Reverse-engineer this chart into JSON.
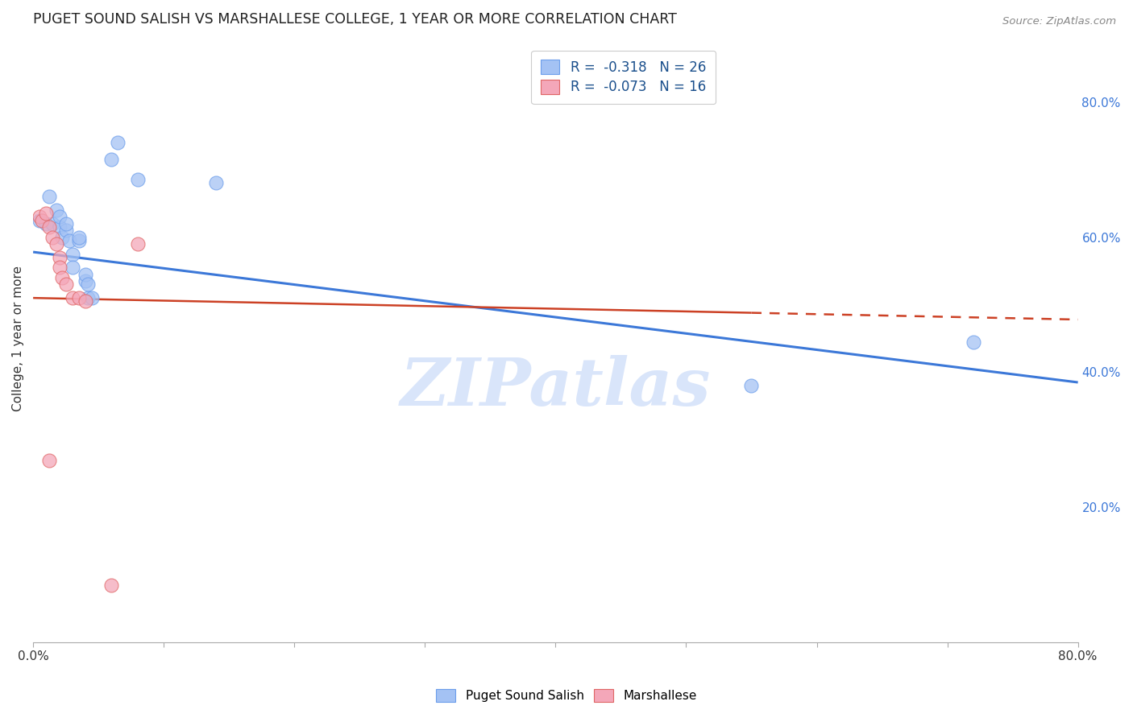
{
  "title": "PUGET SOUND SALISH VS MARSHALLESE COLLEGE, 1 YEAR OR MORE CORRELATION CHART",
  "source": "Source: ZipAtlas.com",
  "ylabel": "College, 1 year or more",
  "xlim": [
    0.0,
    0.8
  ],
  "ylim": [
    0.0,
    0.9
  ],
  "x_ticks": [
    0.0,
    0.1,
    0.2,
    0.3,
    0.4,
    0.5,
    0.6,
    0.7,
    0.8
  ],
  "x_tick_labels": [
    "0.0%",
    "",
    "",
    "",
    "",
    "",
    "",
    "",
    "80.0%"
  ],
  "y_ticks_right": [
    0.2,
    0.4,
    0.6,
    0.8
  ],
  "y_tick_labels_right": [
    "20.0%",
    "40.0%",
    "60.0%",
    "80.0%"
  ],
  "blue_color": "#a4c2f4",
  "pink_color": "#f4a7b9",
  "blue_edge_color": "#6d9eeb",
  "pink_edge_color": "#e06666",
  "blue_line_color": "#3c78d8",
  "pink_line_color": "#cc4125",
  "watermark": "ZIPatlas",
  "watermark_color": "#c9daf8",
  "blue_scatter": [
    [
      0.005,
      0.625
    ],
    [
      0.01,
      0.62
    ],
    [
      0.012,
      0.66
    ],
    [
      0.015,
      0.62
    ],
    [
      0.018,
      0.64
    ],
    [
      0.02,
      0.615
    ],
    [
      0.02,
      0.63
    ],
    [
      0.022,
      0.6
    ],
    [
      0.025,
      0.61
    ],
    [
      0.025,
      0.62
    ],
    [
      0.028,
      0.595
    ],
    [
      0.03,
      0.575
    ],
    [
      0.03,
      0.555
    ],
    [
      0.035,
      0.595
    ],
    [
      0.035,
      0.6
    ],
    [
      0.04,
      0.535
    ],
    [
      0.04,
      0.545
    ],
    [
      0.042,
      0.51
    ],
    [
      0.042,
      0.53
    ],
    [
      0.045,
      0.51
    ],
    [
      0.06,
      0.715
    ],
    [
      0.065,
      0.74
    ],
    [
      0.08,
      0.685
    ],
    [
      0.14,
      0.68
    ],
    [
      0.55,
      0.38
    ],
    [
      0.72,
      0.445
    ]
  ],
  "pink_scatter": [
    [
      0.005,
      0.63
    ],
    [
      0.007,
      0.625
    ],
    [
      0.01,
      0.635
    ],
    [
      0.012,
      0.615
    ],
    [
      0.015,
      0.6
    ],
    [
      0.018,
      0.59
    ],
    [
      0.02,
      0.57
    ],
    [
      0.02,
      0.555
    ],
    [
      0.022,
      0.54
    ],
    [
      0.025,
      0.53
    ],
    [
      0.03,
      0.51
    ],
    [
      0.035,
      0.51
    ],
    [
      0.04,
      0.505
    ],
    [
      0.08,
      0.59
    ],
    [
      0.012,
      0.27
    ],
    [
      0.06,
      0.085
    ]
  ],
  "blue_trendline_x": [
    0.0,
    0.8
  ],
  "blue_trendline_y": [
    0.578,
    0.385
  ],
  "pink_trendline_x": [
    0.0,
    0.8
  ],
  "pink_trendline_y": [
    0.51,
    0.478
  ],
  "background_color": "#ffffff",
  "grid_color": "#cccccc"
}
